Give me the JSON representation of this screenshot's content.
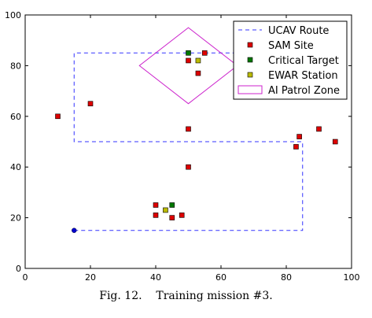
{
  "caption": {
    "label": "Fig. 12.",
    "text": "Training mission #3."
  },
  "chart_data": {
    "type": "scatter",
    "title": "",
    "xlabel": "",
    "ylabel": "",
    "xlim": [
      0,
      100
    ],
    "ylim": [
      0,
      100
    ],
    "xticks": [
      0,
      20,
      40,
      60,
      80,
      100
    ],
    "yticks": [
      0,
      20,
      40,
      60,
      80,
      100
    ],
    "grid": false,
    "legend_position": "top-right",
    "colors": {
      "route": "#3333ff",
      "start": "#0000cc",
      "sam": "#dd0000",
      "target": "#007700",
      "ewar": "#bbbb00",
      "patrol": "#cc22cc"
    },
    "series": [
      {
        "name": "UCAV Route",
        "kind": "line",
        "points": [
          [
            15,
            15
          ],
          [
            85,
            15
          ],
          [
            85,
            50
          ],
          [
            15,
            50
          ],
          [
            15,
            85
          ],
          [
            85,
            85
          ]
        ]
      },
      {
        "name": "SAM Site",
        "kind": "marker",
        "points": [
          [
            10,
            60
          ],
          [
            20,
            65
          ],
          [
            50,
            82
          ],
          [
            53,
            77
          ],
          [
            55,
            85
          ],
          [
            50,
            55
          ],
          [
            50,
            40
          ],
          [
            84,
            52
          ],
          [
            83,
            48
          ],
          [
            90,
            55
          ],
          [
            95,
            50
          ],
          [
            40,
            25
          ],
          [
            40,
            21
          ],
          [
            45,
            20
          ],
          [
            48,
            21
          ]
        ]
      },
      {
        "name": "Critical Target",
        "kind": "marker",
        "points": [
          [
            50,
            85
          ],
          [
            45,
            25
          ]
        ]
      },
      {
        "name": "EWAR Station",
        "kind": "marker",
        "points": [
          [
            53,
            82
          ],
          [
            43,
            23
          ]
        ]
      },
      {
        "name": "AI Patrol Zone",
        "kind": "polygon",
        "points": [
          [
            50,
            95
          ],
          [
            65,
            80
          ],
          [
            50,
            65
          ],
          [
            35,
            80
          ]
        ]
      }
    ],
    "start_point": [
      15,
      15
    ]
  }
}
